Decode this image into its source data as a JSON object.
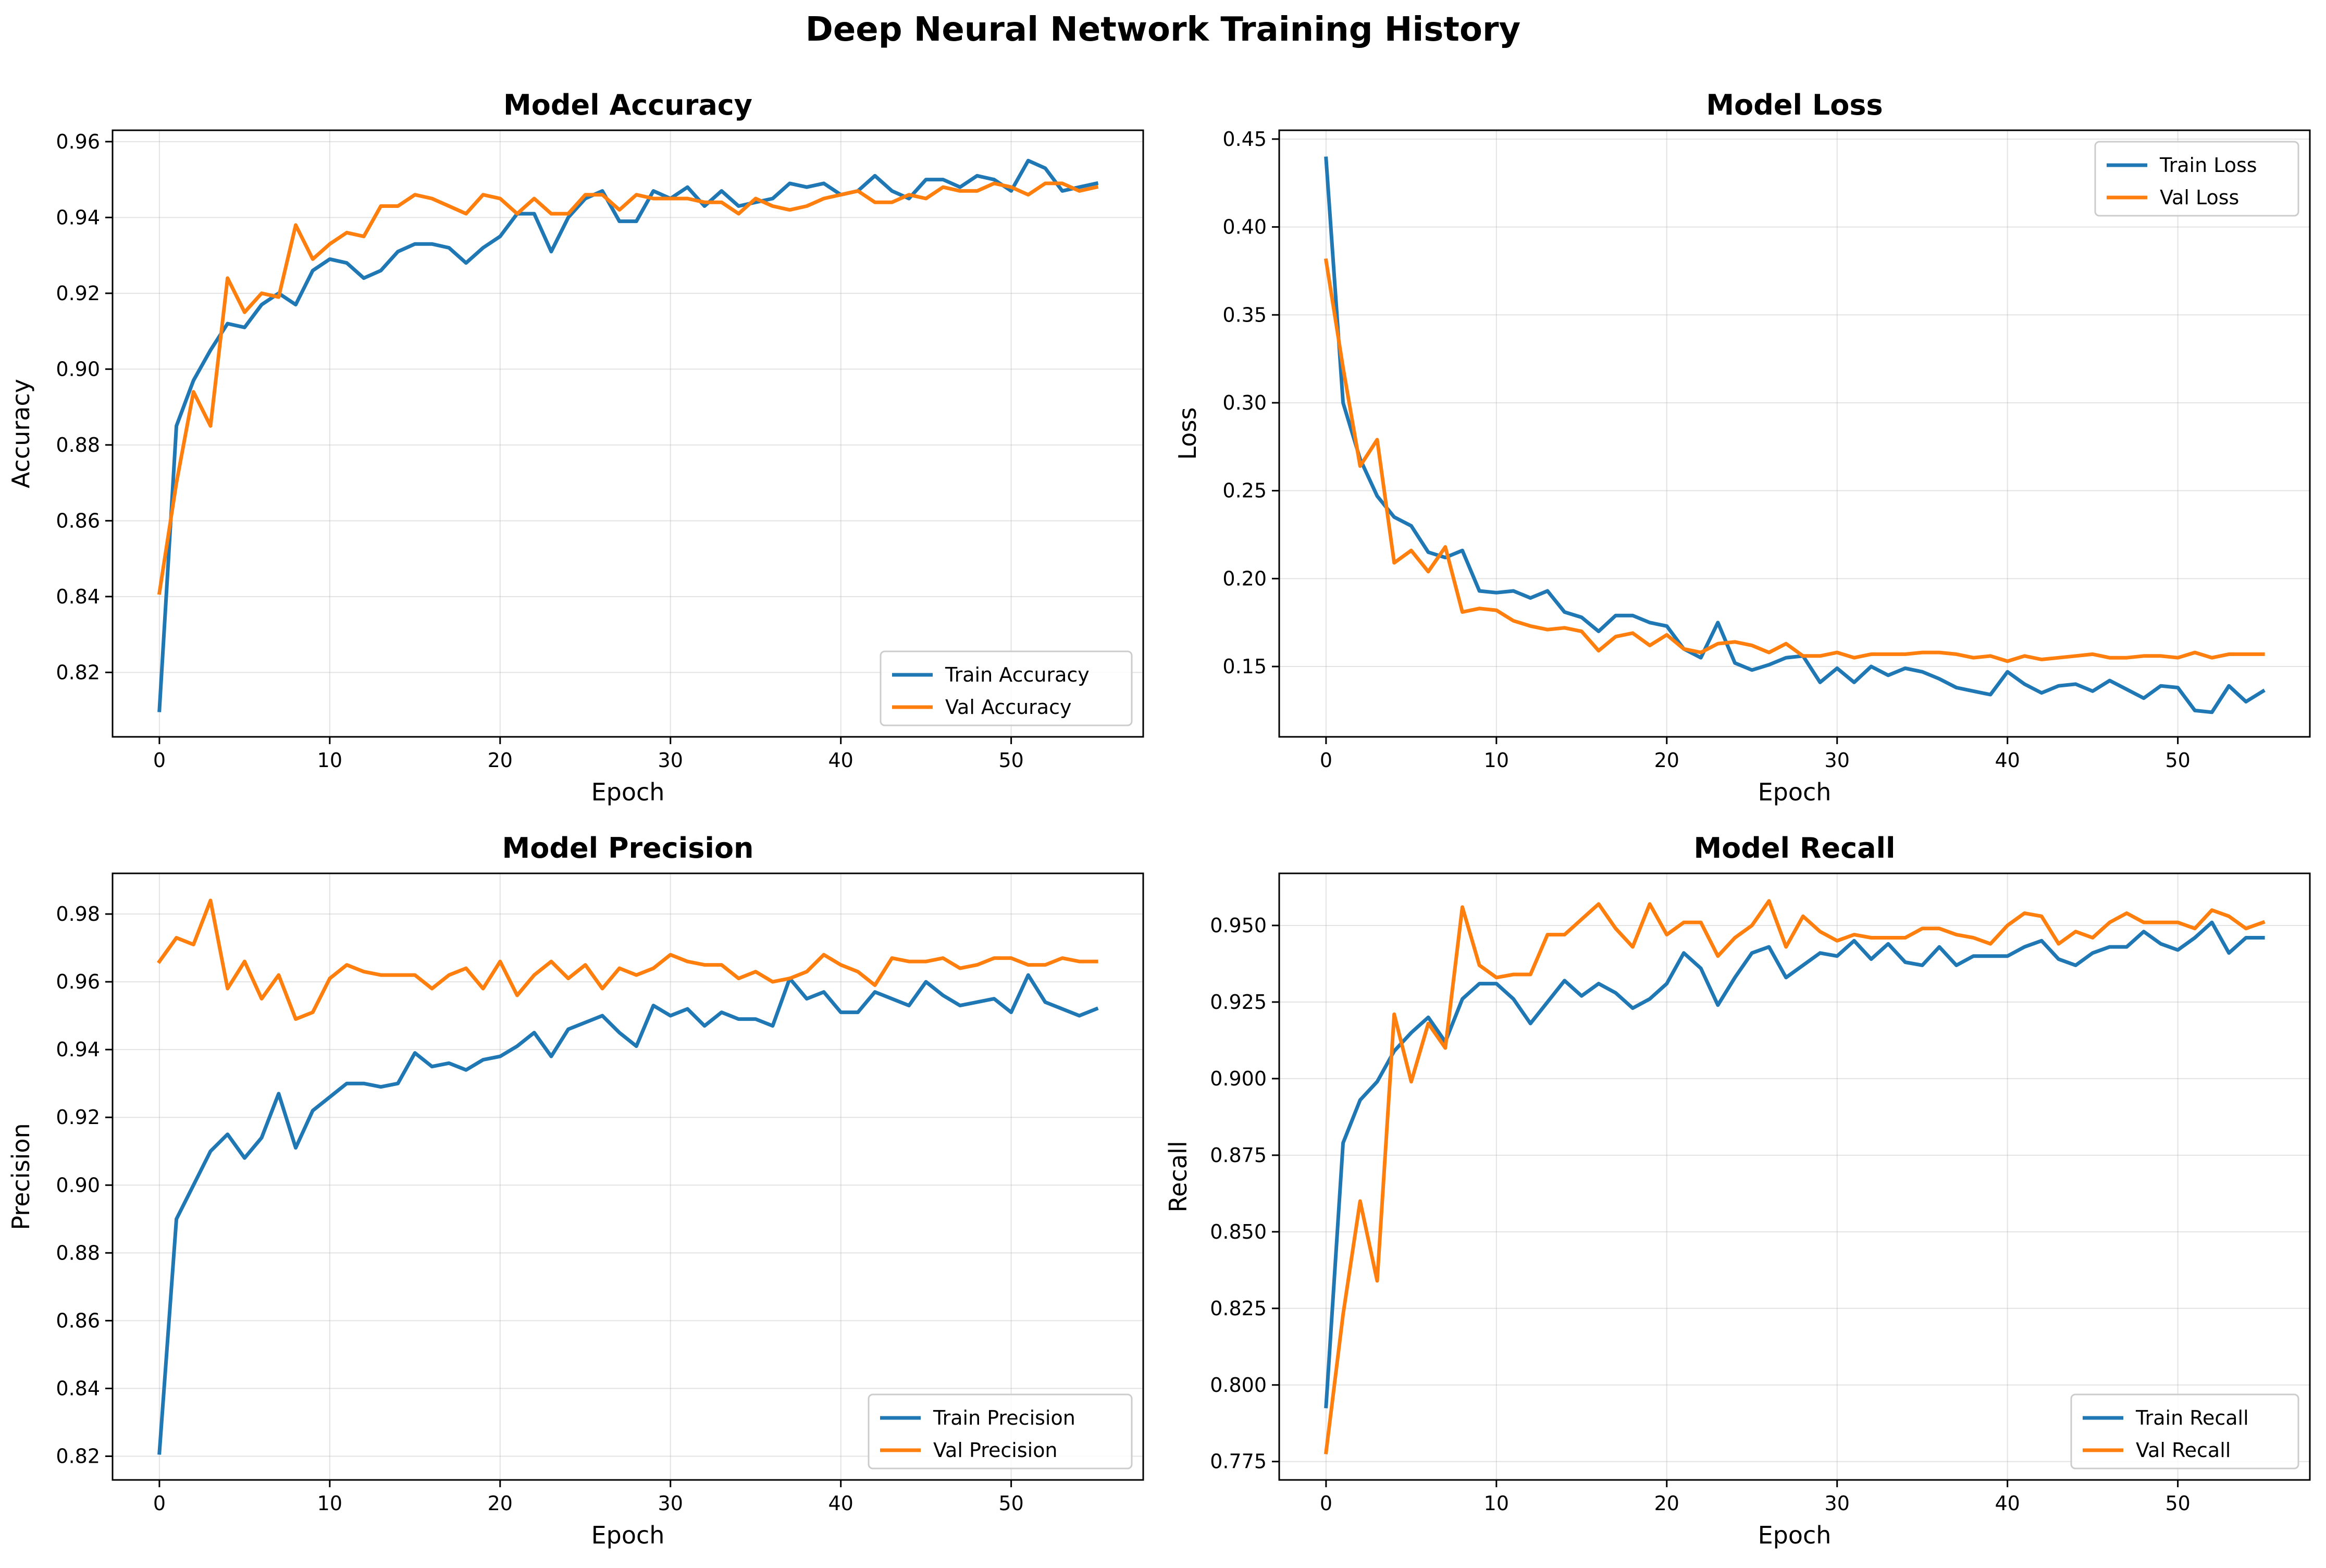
{
  "figure_title": "Deep Neural Network Training History",
  "colors": {
    "train": "#1f77b4",
    "val": "#ff7f0e"
  },
  "chart_data": [
    {
      "type": "line",
      "title": "Model Accuracy",
      "xlabel": "Epoch",
      "ylabel": "Accuracy",
      "xlim": [
        -2.75,
        57.75
      ],
      "ylim": [
        0.803,
        0.963
      ],
      "xticks": [
        0,
        10,
        20,
        30,
        40,
        50
      ],
      "yticks": [
        0.82,
        0.84,
        0.86,
        0.88,
        0.9,
        0.92,
        0.94,
        0.96
      ],
      "ytick_decimals": 2,
      "grid": true,
      "legend_position": "lower-right",
      "series": [
        {
          "name": "Train Accuracy",
          "color": "#1f77b4",
          "values": [
            0.81,
            0.885,
            0.897,
            0.905,
            0.912,
            0.911,
            0.917,
            0.92,
            0.917,
            0.926,
            0.929,
            0.928,
            0.924,
            0.926,
            0.931,
            0.933,
            0.933,
            0.932,
            0.928,
            0.932,
            0.935,
            0.941,
            0.941,
            0.931,
            0.94,
            0.945,
            0.947,
            0.939,
            0.939,
            0.947,
            0.945,
            0.948,
            0.943,
            0.947,
            0.943,
            0.944,
            0.945,
            0.949,
            0.948,
            0.949,
            0.946,
            0.947,
            0.951,
            0.947,
            0.945,
            0.95,
            0.95,
            0.948,
            0.951,
            0.95,
            0.947,
            0.955,
            0.953,
            0.947,
            0.948,
            0.949
          ]
        },
        {
          "name": "Val Accuracy",
          "color": "#ff7f0e",
          "values": [
            0.841,
            0.87,
            0.894,
            0.885,
            0.924,
            0.915,
            0.92,
            0.919,
            0.938,
            0.929,
            0.933,
            0.936,
            0.935,
            0.943,
            0.943,
            0.946,
            0.945,
            0.943,
            0.941,
            0.946,
            0.945,
            0.941,
            0.945,
            0.941,
            0.941,
            0.946,
            0.946,
            0.942,
            0.946,
            0.945,
            0.945,
            0.945,
            0.944,
            0.944,
            0.941,
            0.945,
            0.943,
            0.942,
            0.943,
            0.945,
            0.946,
            0.947,
            0.944,
            0.944,
            0.946,
            0.945,
            0.948,
            0.947,
            0.947,
            0.949,
            0.948,
            0.946,
            0.949,
            0.949,
            0.947,
            0.948
          ]
        }
      ]
    },
    {
      "type": "line",
      "title": "Model Loss",
      "xlabel": "Epoch",
      "ylabel": "Loss",
      "xlim": [
        -2.75,
        57.75
      ],
      "ylim": [
        0.11,
        0.455
      ],
      "xticks": [
        0,
        10,
        20,
        30,
        40,
        50
      ],
      "yticks": [
        0.15,
        0.2,
        0.25,
        0.3,
        0.35,
        0.4,
        0.45
      ],
      "ytick_decimals": 2,
      "grid": true,
      "legend_position": "upper-right",
      "series": [
        {
          "name": "Train Loss",
          "color": "#1f77b4",
          "values": [
            0.439,
            0.3,
            0.268,
            0.247,
            0.235,
            0.23,
            0.215,
            0.212,
            0.216,
            0.193,
            0.192,
            0.193,
            0.189,
            0.193,
            0.181,
            0.178,
            0.17,
            0.179,
            0.179,
            0.175,
            0.173,
            0.16,
            0.155,
            0.175,
            0.152,
            0.148,
            0.151,
            0.155,
            0.156,
            0.141,
            0.149,
            0.141,
            0.15,
            0.145,
            0.149,
            0.147,
            0.143,
            0.138,
            0.136,
            0.134,
            0.147,
            0.14,
            0.135,
            0.139,
            0.14,
            0.136,
            0.142,
            0.137,
            0.132,
            0.139,
            0.138,
            0.125,
            0.124,
            0.139,
            0.13,
            0.136
          ]
        },
        {
          "name": "Val Loss",
          "color": "#ff7f0e",
          "values": [
            0.381,
            0.32,
            0.264,
            0.279,
            0.209,
            0.216,
            0.204,
            0.218,
            0.181,
            0.183,
            0.182,
            0.176,
            0.173,
            0.171,
            0.172,
            0.17,
            0.159,
            0.167,
            0.169,
            0.162,
            0.168,
            0.16,
            0.158,
            0.163,
            0.164,
            0.162,
            0.158,
            0.163,
            0.156,
            0.156,
            0.158,
            0.155,
            0.157,
            0.157,
            0.157,
            0.158,
            0.158,
            0.157,
            0.155,
            0.156,
            0.153,
            0.156,
            0.154,
            0.155,
            0.156,
            0.157,
            0.155,
            0.155,
            0.156,
            0.156,
            0.155,
            0.158,
            0.155,
            0.157,
            0.157,
            0.157
          ]
        }
      ]
    },
    {
      "type": "line",
      "title": "Model Precision",
      "xlabel": "Epoch",
      "ylabel": "Precision",
      "xlim": [
        -2.75,
        57.75
      ],
      "ylim": [
        0.813,
        0.992
      ],
      "xticks": [
        0,
        10,
        20,
        30,
        40,
        50
      ],
      "yticks": [
        0.82,
        0.84,
        0.86,
        0.88,
        0.9,
        0.92,
        0.94,
        0.96,
        0.98
      ],
      "ytick_decimals": 2,
      "grid": true,
      "legend_position": "lower-right",
      "series": [
        {
          "name": "Train Precision",
          "color": "#1f77b4",
          "values": [
            0.821,
            0.89,
            0.9,
            0.91,
            0.915,
            0.908,
            0.914,
            0.927,
            0.911,
            0.922,
            0.926,
            0.93,
            0.93,
            0.929,
            0.93,
            0.939,
            0.935,
            0.936,
            0.934,
            0.937,
            0.938,
            0.941,
            0.945,
            0.938,
            0.946,
            0.948,
            0.95,
            0.945,
            0.941,
            0.953,
            0.95,
            0.952,
            0.947,
            0.951,
            0.949,
            0.949,
            0.947,
            0.961,
            0.955,
            0.957,
            0.951,
            0.951,
            0.957,
            0.955,
            0.953,
            0.96,
            0.956,
            0.953,
            0.954,
            0.955,
            0.951,
            0.962,
            0.954,
            0.952,
            0.95,
            0.952
          ]
        },
        {
          "name": "Val Precision",
          "color": "#ff7f0e",
          "values": [
            0.966,
            0.973,
            0.971,
            0.984,
            0.958,
            0.966,
            0.955,
            0.962,
            0.949,
            0.951,
            0.961,
            0.965,
            0.963,
            0.962,
            0.962,
            0.962,
            0.958,
            0.962,
            0.964,
            0.958,
            0.966,
            0.956,
            0.962,
            0.966,
            0.961,
            0.965,
            0.958,
            0.964,
            0.962,
            0.964,
            0.968,
            0.966,
            0.965,
            0.965,
            0.961,
            0.963,
            0.96,
            0.961,
            0.963,
            0.968,
            0.965,
            0.963,
            0.959,
            0.967,
            0.966,
            0.966,
            0.967,
            0.964,
            0.965,
            0.967,
            0.967,
            0.965,
            0.965,
            0.967,
            0.966,
            0.966
          ]
        }
      ]
    },
    {
      "type": "line",
      "title": "Model Recall",
      "xlabel": "Epoch",
      "ylabel": "Recall",
      "xlim": [
        -2.75,
        57.75
      ],
      "ylim": [
        0.769,
        0.967
      ],
      "xticks": [
        0,
        10,
        20,
        30,
        40,
        50
      ],
      "yticks": [
        0.775,
        0.8,
        0.825,
        0.85,
        0.875,
        0.9,
        0.925,
        0.95
      ],
      "ytick_decimals": 3,
      "grid": true,
      "legend_position": "lower-right",
      "series": [
        {
          "name": "Train Recall",
          "color": "#1f77b4",
          "values": [
            0.793,
            0.879,
            0.893,
            0.899,
            0.909,
            0.915,
            0.92,
            0.912,
            0.926,
            0.931,
            0.931,
            0.926,
            0.918,
            0.925,
            0.932,
            0.927,
            0.931,
            0.928,
            0.923,
            0.926,
            0.931,
            0.941,
            0.936,
            0.924,
            0.933,
            0.941,
            0.943,
            0.933,
            0.937,
            0.941,
            0.94,
            0.945,
            0.939,
            0.944,
            0.938,
            0.937,
            0.943,
            0.937,
            0.94,
            0.94,
            0.94,
            0.943,
            0.945,
            0.939,
            0.937,
            0.941,
            0.943,
            0.943,
            0.948,
            0.944,
            0.942,
            0.946,
            0.951,
            0.941,
            0.946,
            0.946
          ]
        },
        {
          "name": "Val Recall",
          "color": "#ff7f0e",
          "values": [
            0.778,
            0.823,
            0.86,
            0.834,
            0.921,
            0.899,
            0.918,
            0.91,
            0.956,
            0.937,
            0.933,
            0.934,
            0.934,
            0.947,
            0.947,
            0.952,
            0.957,
            0.949,
            0.943,
            0.957,
            0.947,
            0.951,
            0.951,
            0.94,
            0.946,
            0.95,
            0.958,
            0.943,
            0.953,
            0.948,
            0.945,
            0.947,
            0.946,
            0.946,
            0.946,
            0.949,
            0.949,
            0.947,
            0.946,
            0.944,
            0.95,
            0.954,
            0.953,
            0.944,
            0.948,
            0.946,
            0.951,
            0.954,
            0.951,
            0.951,
            0.951,
            0.949,
            0.955,
            0.953,
            0.949,
            0.951
          ]
        }
      ]
    }
  ]
}
